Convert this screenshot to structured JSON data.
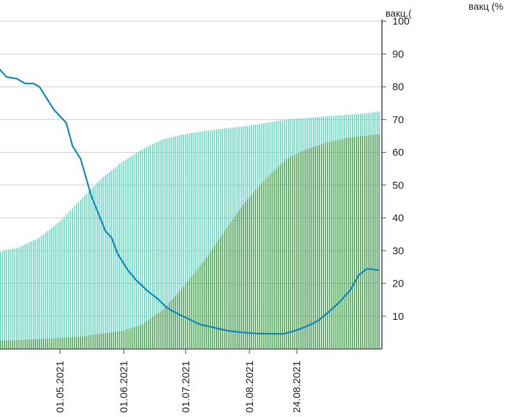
{
  "chart_data": {
    "type": "bar",
    "y_axis_title": "вакц.(",
    "corner_title": "вакц (%",
    "ylim": [
      0,
      105
    ],
    "y_ticks": [
      10,
      20,
      30,
      40,
      50,
      60,
      70,
      80,
      90,
      100
    ],
    "y_tick_labels": [
      "10",
      "20",
      "30",
      "40",
      "50",
      "60",
      "70",
      "80",
      "90",
      "100"
    ],
    "x_tick_labels": [
      "01.05.2021",
      "01.06.2021",
      "01.07.2021",
      "01.08.2021",
      "24.08.2021"
    ],
    "grid": true,
    "colors": {
      "series_1": "#4dd6b8",
      "series_2": "#3a9a3a",
      "series_3": "#0a84c0",
      "grid": "#cccccc",
      "axis": "#444444"
    },
    "series": [
      {
        "key": "series_1",
        "kind": "bar",
        "points": [
          [
            0,
            29.5
          ],
          [
            10,
            31
          ],
          [
            20,
            34
          ],
          [
            30,
            39
          ],
          [
            40,
            45.5
          ],
          [
            50,
            52
          ],
          [
            60,
            57
          ],
          [
            70,
            61
          ],
          [
            80,
            64
          ],
          [
            90,
            65.5
          ],
          [
            100,
            66.5
          ],
          [
            110,
            67.3
          ],
          [
            120,
            68
          ],
          [
            130,
            69
          ],
          [
            140,
            70
          ],
          [
            150,
            70.5
          ],
          [
            160,
            71
          ],
          [
            170,
            71.5
          ],
          [
            180,
            72
          ],
          [
            185,
            72.5
          ]
        ]
      },
      {
        "key": "series_2",
        "kind": "bar",
        "points": [
          [
            0,
            2.5
          ],
          [
            20,
            3
          ],
          [
            40,
            3.8
          ],
          [
            60,
            5.5
          ],
          [
            70,
            7.5
          ],
          [
            80,
            12
          ],
          [
            90,
            19
          ],
          [
            100,
            27
          ],
          [
            110,
            36
          ],
          [
            120,
            45
          ],
          [
            130,
            52
          ],
          [
            140,
            58
          ],
          [
            150,
            61
          ],
          [
            160,
            63
          ],
          [
            170,
            64.5
          ],
          [
            185,
            65.5
          ]
        ]
      },
      {
        "key": "series_3",
        "kind": "line",
        "points": [
          [
            0,
            85.8
          ],
          [
            4,
            83
          ],
          [
            9,
            82.5
          ],
          [
            13,
            81
          ],
          [
            17,
            81
          ],
          [
            20,
            80
          ],
          [
            27,
            73
          ],
          [
            33,
            69
          ],
          [
            36,
            62
          ],
          [
            40,
            58
          ],
          [
            45,
            47
          ],
          [
            52,
            36
          ],
          [
            55,
            34
          ],
          [
            58,
            29
          ],
          [
            63,
            24
          ],
          [
            67,
            21
          ],
          [
            72,
            18
          ],
          [
            78,
            15
          ],
          [
            82,
            12.5
          ],
          [
            88,
            10.5
          ],
          [
            93,
            9
          ],
          [
            98,
            7.5
          ],
          [
            105,
            6.5
          ],
          [
            112,
            5.5
          ],
          [
            120,
            5
          ],
          [
            126,
            4.7
          ],
          [
            138,
            4.6
          ],
          [
            141,
            5
          ],
          [
            146,
            6
          ],
          [
            150,
            7
          ],
          [
            155,
            8.5
          ],
          [
            160,
            11
          ],
          [
            166,
            14.5
          ],
          [
            171,
            18
          ],
          [
            175,
            22.5
          ],
          [
            179,
            24.5
          ],
          [
            182,
            24.3
          ],
          [
            185,
            24
          ]
        ]
      }
    ]
  }
}
